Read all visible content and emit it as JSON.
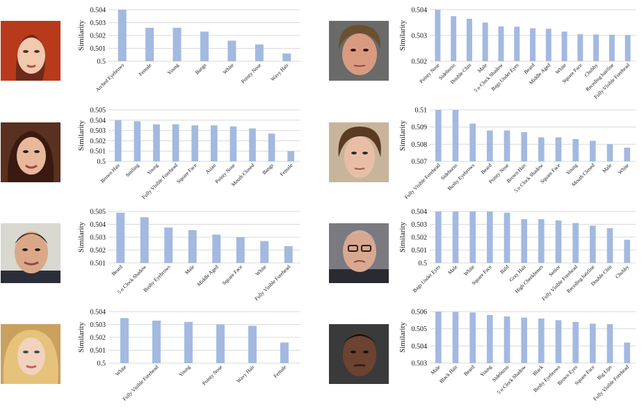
{
  "colors": {
    "bar": "#a3b9e0",
    "grid": "#d9d9d9"
  },
  "chart_data": [
    {
      "type": "bar",
      "ylabel": "Similarity",
      "ylim": [
        0.5,
        0.504
      ],
      "yticks": [
        0.5,
        0.501,
        0.502,
        0.503,
        0.504
      ],
      "grid": true,
      "categories": [
        "Arched Eyebrows",
        "Female",
        "Young",
        "Bangs",
        "White",
        "Pointy Nose",
        "Wavy Hair"
      ],
      "values": [
        0.504,
        0.5026,
        0.5026,
        0.5023,
        0.5016,
        0.5013,
        0.5006
      ]
    },
    {
      "type": "bar",
      "ylabel": "Similarity",
      "ylim": [
        0.502,
        0.504
      ],
      "yticks": [
        0.502,
        0.503,
        0.504
      ],
      "grid": true,
      "categories": [
        "Pointy Nose",
        "Sideburns",
        "Double Chin",
        "Male",
        "5 o Clock Shadow",
        "Bags Under Eyes",
        "Beard",
        "Middle Aged",
        "White",
        "Square Face",
        "Chubby",
        "Receding hairline",
        "Fully Visible Forehead"
      ],
      "values": [
        0.504,
        0.50375,
        0.50365,
        0.5035,
        0.50335,
        0.50334,
        0.50328,
        0.50326,
        0.50315,
        0.50305,
        0.50304,
        0.50303,
        0.50302
      ]
    },
    {
      "type": "bar",
      "ylabel": "Similarity",
      "ylim": [
        0.5,
        0.505
      ],
      "yticks": [
        0.5,
        0.501,
        0.502,
        0.503,
        0.504,
        0.505
      ],
      "grid": true,
      "categories": [
        "Brown Hair",
        "Smiling",
        "Young",
        "Fully Visible Forehead",
        "Square Face",
        "Asian",
        "Pointy Nose",
        "Mouth Closed",
        "Bangs",
        "Female"
      ],
      "values": [
        0.504,
        0.5039,
        0.5036,
        0.5036,
        0.5035,
        0.5035,
        0.5034,
        0.5032,
        0.5027,
        0.501
      ]
    },
    {
      "type": "bar",
      "ylabel": "Similarity",
      "ylim": [
        0.507,
        0.51
      ],
      "yticks": [
        0.507,
        0.508,
        0.509,
        0.51
      ],
      "grid": true,
      "categories": [
        "Fully Visible Forehead",
        "Sideburns",
        "Bushy Eyebrows",
        "Beard",
        "Pointy Nose",
        "Brown Hair",
        "5 o Clock Shadow",
        "Square Face",
        "Young",
        "Mouth Closed",
        "Male",
        "White"
      ],
      "values": [
        0.51,
        0.51,
        0.5092,
        0.5088,
        0.5088,
        0.5087,
        0.5084,
        0.5084,
        0.5083,
        0.5082,
        0.508,
        0.5078
      ]
    },
    {
      "type": "bar",
      "ylabel": "Similarity",
      "ylim": [
        0.501,
        0.505
      ],
      "yticks": [
        0.501,
        0.502,
        0.503,
        0.504,
        0.505
      ],
      "grid": true,
      "categories": [
        "Beard",
        "5 o Clock Shadow",
        "Bushy Eyebrows",
        "Male",
        "Middle Aged",
        "Square Face",
        "White",
        "Fully Visible Forehead"
      ],
      "values": [
        0.5049,
        0.50455,
        0.50375,
        0.50355,
        0.5032,
        0.503,
        0.5027,
        0.5023
      ]
    },
    {
      "type": "bar",
      "ylabel": "Similarity",
      "ylim": [
        0.5,
        0.504
      ],
      "yticks": [
        0.5,
        0.501,
        0.502,
        0.503,
        0.504
      ],
      "grid": true,
      "categories": [
        "Bags Under Eyes",
        "Male",
        "White",
        "Square Face",
        "Bald",
        "Gray Hair",
        "High Cheekbones",
        "Senior",
        "Fully Visible Forehead",
        "Receding hairline",
        "Double Chin",
        "Chubby"
      ],
      "values": [
        0.504,
        0.504,
        0.504,
        0.504,
        0.5039,
        0.5034,
        0.5034,
        0.5033,
        0.5031,
        0.5029,
        0.5027,
        0.5018
      ]
    },
    {
      "type": "bar",
      "ylabel": "Similarity",
      "ylim": [
        0.5,
        0.504
      ],
      "yticks": [
        0.5,
        0.501,
        0.502,
        0.503,
        0.504
      ],
      "grid": true,
      "categories": [
        "White",
        "Fully Visible Forehead",
        "Young",
        "Pointy Nose",
        "Wavy Hair",
        "Female"
      ],
      "values": [
        0.5035,
        0.5033,
        0.5032,
        0.503,
        0.5029,
        0.5016
      ]
    },
    {
      "type": "bar",
      "ylabel": "Similarity",
      "ylim": [
        0.503,
        0.506
      ],
      "yticks": [
        0.503,
        0.504,
        0.505,
        0.506
      ],
      "grid": true,
      "categories": [
        "Male",
        "Black Hair",
        "Beard",
        "Young",
        "Sideburns",
        "5 o Clock Shadow",
        "Black",
        "Bushy Eyebrows",
        "Brown Eyes",
        "Square Face",
        "Big Lips",
        "Fully Visible Forehead"
      ],
      "values": [
        0.506,
        0.50598,
        0.50595,
        0.5058,
        0.50572,
        0.50565,
        0.5056,
        0.5055,
        0.5054,
        0.5053,
        0.50527,
        0.5042
      ]
    }
  ]
}
